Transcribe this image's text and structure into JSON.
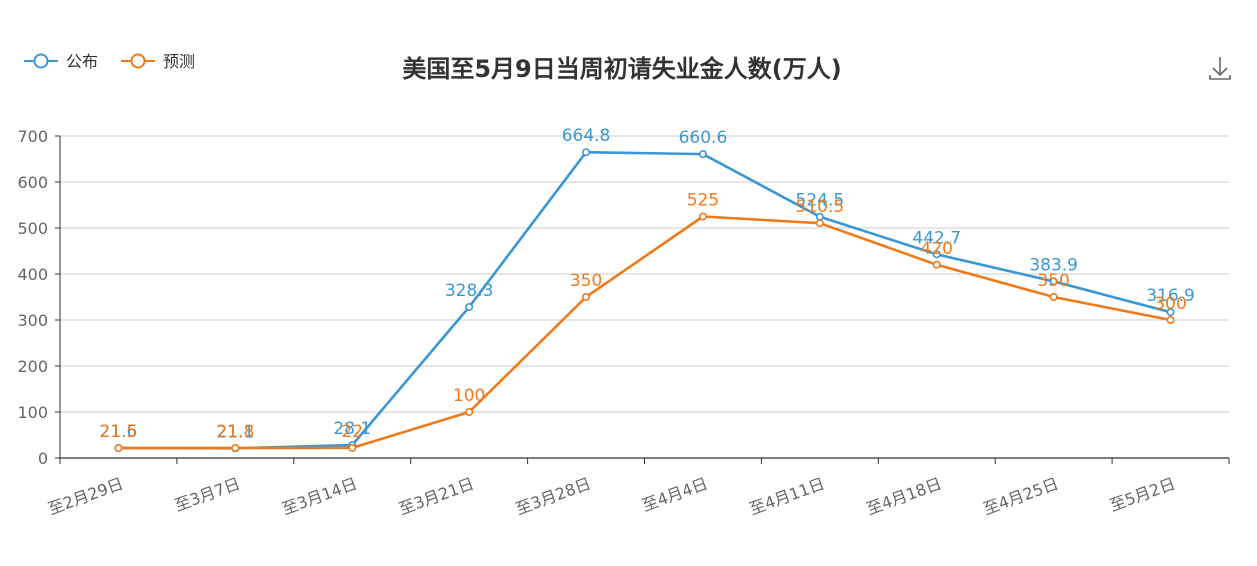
{
  "chart_data": {
    "type": "line",
    "title": "美国至5月9日当周初请失业金人数(万人)",
    "xlabel": "",
    "ylabel": "",
    "categories": [
      "至2月29日",
      "至3月7日",
      "至3月14日",
      "至3月21日",
      "至3月28日",
      "至4月4日",
      "至4月11日",
      "至4月18日",
      "至4月25日",
      "至5月2日"
    ],
    "ylim": [
      0,
      700
    ],
    "yticks": [
      0,
      100,
      200,
      300,
      400,
      500,
      600,
      700
    ],
    "grid": true,
    "legend_position": "top-left",
    "series": [
      {
        "name": "公布",
        "color": "#3a97d4",
        "values": [
          21.6,
          21.1,
          28.1,
          328.3,
          664.8,
          660.6,
          524.5,
          442.7,
          383.9,
          316.9
        ],
        "labels": [
          "21.6",
          "21.1",
          "28.1",
          "328.3",
          "664.8",
          "660.6",
          "524.5",
          "442.7",
          "383.9",
          "316.9"
        ]
      },
      {
        "name": "预测",
        "color": "#f07a1a",
        "values": [
          21.5,
          21.8,
          22,
          100,
          350,
          525,
          510.5,
          420,
          350,
          300
        ],
        "labels": [
          "21.5",
          "21.8",
          "22",
          "100",
          "350",
          "525",
          "510.5",
          "420",
          "350",
          "300"
        ]
      }
    ]
  },
  "toolbar": {
    "download_icon": "download-icon"
  }
}
